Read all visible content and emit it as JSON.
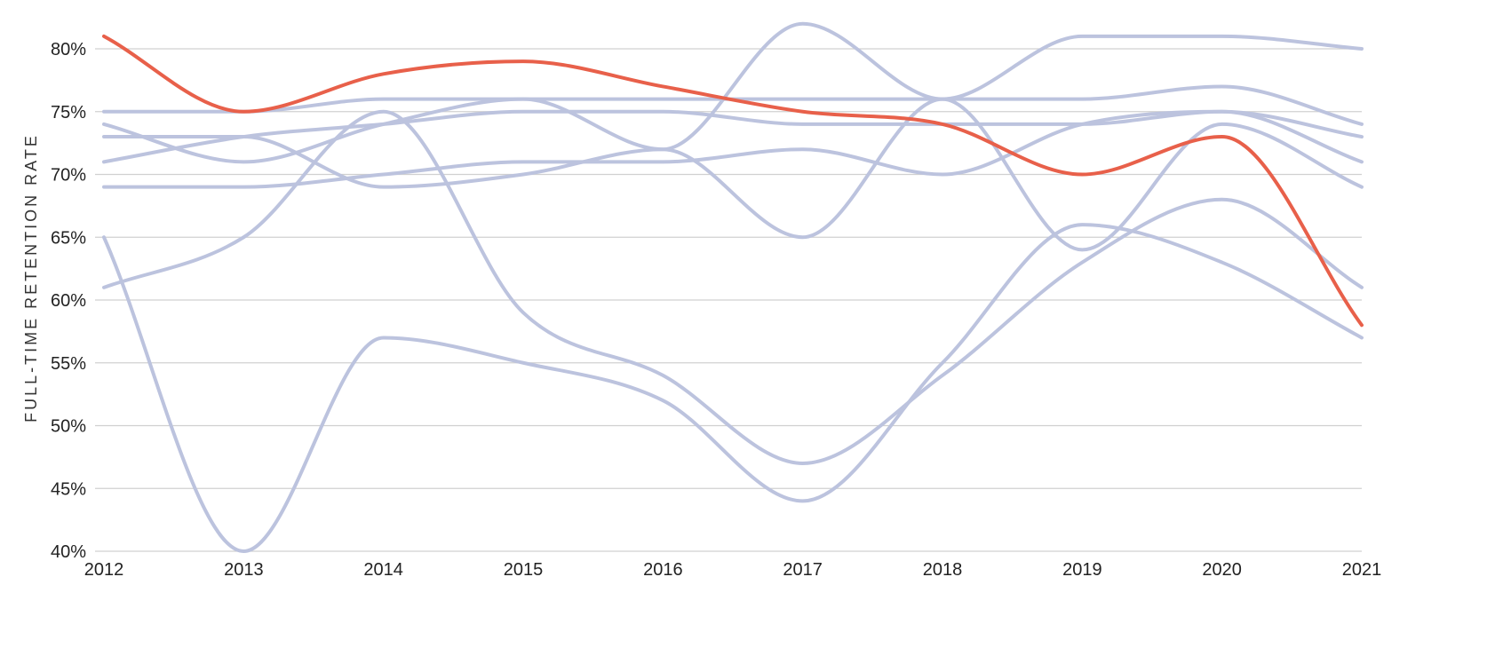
{
  "chart_data": {
    "type": "line",
    "title": "",
    "xlabel": "",
    "ylabel": "FULL-TIME RETENTION RATE",
    "x": [
      2012,
      2013,
      2014,
      2015,
      2016,
      2017,
      2018,
      2019,
      2020,
      2021
    ],
    "ylim": [
      40,
      80
    ],
    "y_ticks": [
      40,
      45,
      50,
      55,
      60,
      65,
      70,
      75,
      80
    ],
    "y_tick_labels": [
      "40%",
      "45%",
      "50%",
      "55%",
      "60%",
      "65%",
      "70%",
      "75%",
      "80%"
    ],
    "x_tick_labels": [
      "2012",
      "2013",
      "2014",
      "2015",
      "2016",
      "2017",
      "2018",
      "2019",
      "2020",
      "2021"
    ],
    "grid": "horizontal",
    "legend": "none",
    "colors": {
      "highlight": "#e8604a",
      "context": "#bcc3de",
      "grid": "#d0d0d0"
    },
    "series": [
      {
        "highlight": false,
        "values": [
          65,
          40,
          57,
          55,
          52,
          44,
          55,
          66,
          63,
          57
        ]
      },
      {
        "highlight": false,
        "values": [
          61,
          65,
          75,
          59,
          54,
          47,
          54,
          63,
          68,
          61
        ]
      },
      {
        "highlight": false,
        "values": [
          74,
          71,
          74,
          76,
          72,
          82,
          76,
          81,
          81,
          80
        ]
      },
      {
        "highlight": false,
        "values": [
          75,
          75,
          76,
          76,
          76,
          76,
          76,
          76,
          77,
          74
        ]
      },
      {
        "highlight": false,
        "values": [
          73,
          73,
          69,
          70,
          72,
          65,
          76,
          64,
          74,
          69
        ]
      },
      {
        "highlight": false,
        "values": [
          71,
          73,
          74,
          75,
          75,
          74,
          74,
          74,
          75,
          73
        ]
      },
      {
        "highlight": false,
        "values": [
          69,
          69,
          70,
          71,
          71,
          72,
          70,
          74,
          75,
          71
        ]
      },
      {
        "highlight": true,
        "values": [
          81,
          75,
          78,
          79,
          77,
          75,
          74,
          70,
          73,
          58
        ]
      }
    ]
  }
}
